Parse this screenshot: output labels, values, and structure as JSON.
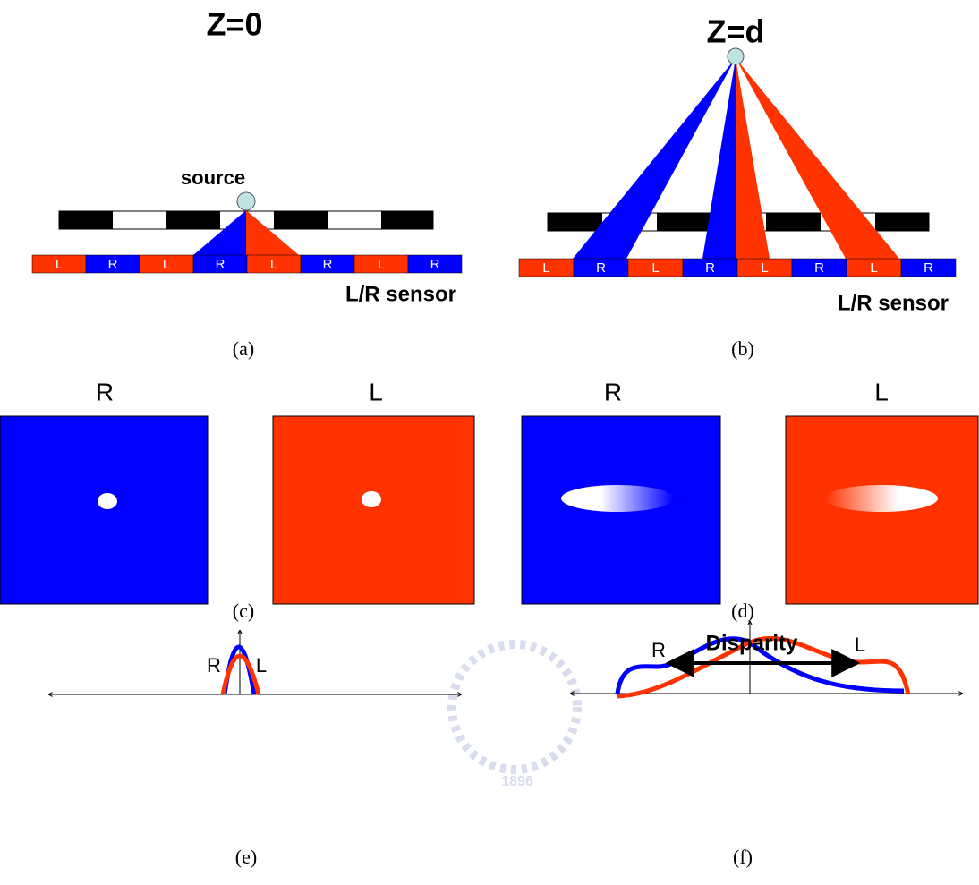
{
  "panels": {
    "a": {
      "title": "Z=0",
      "source": "source",
      "sensor_cells": [
        "L",
        "R",
        "L",
        "R",
        "L",
        "R",
        "L",
        "R"
      ],
      "sensor_label": "L/R sensor",
      "caption": "(a)"
    },
    "b": {
      "title": "Z=d",
      "sensor_cells": [
        "L",
        "R",
        "L",
        "R",
        "L",
        "R",
        "L",
        "R"
      ],
      "sensor_label": "L/R sensor",
      "caption": "(b)"
    },
    "c": {
      "labels": [
        "R",
        "L"
      ],
      "caption": "(c)"
    },
    "d": {
      "labels": [
        "R",
        "L"
      ],
      "caption": "(d)"
    },
    "e": {
      "curve_labels": [
        "R",
        "L"
      ],
      "caption": "(e)"
    },
    "f": {
      "curve_labels": [
        "R",
        "L"
      ],
      "arrow_label": "Disparity",
      "caption": "(f)"
    }
  },
  "watermark": "1896"
}
